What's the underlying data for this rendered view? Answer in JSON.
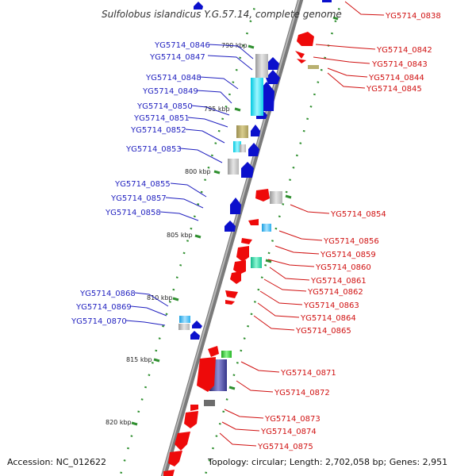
{
  "title": "Sulfolobus islandicus Y.G.57.14, complete genome",
  "accession": "Accession: NC_012622",
  "topology": "Topology: circular; Length: 2,702,058 bp; Genes: 2,951",
  "colors": {
    "forward": "#0b10cc",
    "reverse": "#ee0a0a",
    "backbone": "#7a7a7a",
    "tick": "#2f8f2f"
  },
  "scale_labels": [
    "790 kbp",
    "795 kbp",
    "800 kbp",
    "805 kbp",
    "810 kbp",
    "815 kbp",
    "820 kbp"
  ],
  "left_labels": [
    "YG5714_0846",
    "YG5714_0847",
    "YG5714_0848",
    "YG5714_0849",
    "YG5714_0850",
    "YG5714_0851",
    "YG5714_0852",
    "YG5714_0853",
    "YG5714_0855",
    "YG5714_0857",
    "YG5714_0858",
    "YG5714_0868",
    "YG5714_0869",
    "YG5714_0870"
  ],
  "right_labels": [
    "YG5714_0838",
    "YG5714_0842",
    "YG5714_0843",
    "YG5714_0844",
    "YG5714_0845",
    "YG5714_0854",
    "YG5714_0856",
    "YG5714_0859",
    "YG5714_0860",
    "YG5714_0861",
    "YG5714_0862",
    "YG5714_0863",
    "YG5714_0864",
    "YG5714_0865",
    "YG5714_0871",
    "YG5714_0872",
    "YG5714_0873",
    "YG5714_0874",
    "YG5714_0875"
  ]
}
